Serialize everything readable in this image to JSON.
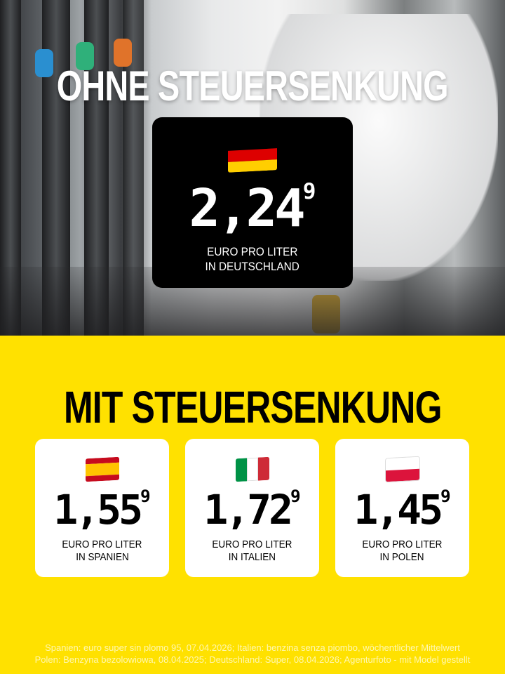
{
  "top": {
    "title": "OHNE STEUERSENKUNG",
    "country": {
      "flag": "germany-flag",
      "colors": [
        "#000000",
        "#DD0000",
        "#FFCE00"
      ],
      "price_main": "2,24",
      "price_sup": "9",
      "label_line1": "EURO PRO LITER",
      "label_line2": "IN DEUTSCHLAND"
    }
  },
  "bottom": {
    "title": "MIT STEUERSENKUNG",
    "cards": [
      {
        "flag": "spain-flag",
        "colors": [
          "#C60B1E",
          "#FFC400",
          "#C60B1E"
        ],
        "price_main": "1,55",
        "price_sup": "9",
        "label_line1": "EURO PRO LITER",
        "label_line2": "IN SPANIEN"
      },
      {
        "flag": "italy-flag",
        "colors": [
          "#009246",
          "#FFFFFF",
          "#CE2B37"
        ],
        "price_main": "1,72",
        "price_sup": "9",
        "label_line1": "EURO PRO LITER",
        "label_line2": "IN ITALIEN"
      },
      {
        "flag": "poland-flag",
        "colors": [
          "#FFFFFF",
          "#DC143C"
        ],
        "price_main": "1,45",
        "price_sup": "9",
        "label_line1": "EURO PRO LITER",
        "label_line2": "IN POLEN"
      }
    ]
  },
  "footer": {
    "line1": "Spanien: euro super sin plomo 95, 07.04.2026; Italien: benzina senza piombo, wöchentlicher Mittelwert",
    "line2": "Polen: Benzyna bezolowiowa, 08.04.2025; Deutschland: Super, 08.04.2026; Agenturfoto - mit Model gestellt"
  },
  "colors": {
    "background": "#FFE100",
    "card": "#FFFFFF",
    "dark_card": "#000000"
  }
}
